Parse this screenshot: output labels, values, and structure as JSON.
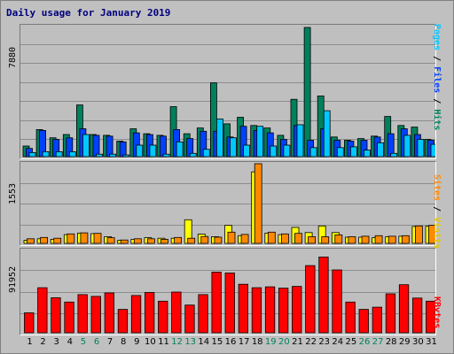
{
  "title": "Daily usage for January 2019",
  "colors": {
    "hits": "#00805c",
    "files": "#0040ff",
    "pages": "#00c8ff",
    "visits": "#ff8800",
    "sites": "#ffff00",
    "kbytes": "#ff0000",
    "weekend_label": "#00805c",
    "weekday_label": "#000000"
  },
  "legend": {
    "top": {
      "pages": "Pages",
      "sep1": " / ",
      "files": "Files",
      "sep2": " / ",
      "hits": "Hits"
    },
    "middle": {
      "sites": "Sites",
      "sep1": " / ",
      "visits": "Visits"
    },
    "bottom": {
      "kbytes": "KBytes"
    }
  },
  "chart_data": [
    {
      "type": "bar",
      "panel": "top",
      "ymax_label": "7880",
      "ylim": [
        0,
        7880
      ],
      "categories": [
        "1",
        "2",
        "3",
        "4",
        "5",
        "6",
        "7",
        "8",
        "9",
        "10",
        "11",
        "12",
        "13",
        "14",
        "15",
        "16",
        "17",
        "18",
        "19",
        "20",
        "21",
        "22",
        "23",
        "24",
        "25",
        "26",
        "27",
        "28",
        "29",
        "30",
        "31"
      ],
      "weekend": [
        5,
        6,
        12,
        13,
        19,
        20,
        26,
        27
      ],
      "series": [
        {
          "name": "Hits",
          "values": [
            650,
            1650,
            1150,
            1350,
            3150,
            1350,
            1300,
            950,
            1700,
            1400,
            1300,
            3050,
            1400,
            1750,
            4500,
            2000,
            2400,
            1900,
            1750,
            1300,
            3500,
            7880,
            3700,
            1200,
            1000,
            1100,
            1250,
            2450,
            1900,
            1800,
            1050
          ]
        },
        {
          "name": "Files",
          "values": [
            500,
            1600,
            1050,
            1150,
            1700,
            1300,
            1250,
            900,
            1450,
            1350,
            1250,
            1650,
            1100,
            1550,
            1550,
            1200,
            1850,
            1600,
            1450,
            1050,
            1900,
            1000,
            1700,
            1000,
            950,
            1000,
            1200,
            1400,
            1700,
            1350,
            1000
          ]
        },
        {
          "name": "Pages",
          "values": [
            250,
            300,
            300,
            300,
            1350,
            150,
            150,
            100,
            700,
            700,
            150,
            900,
            200,
            450,
            2300,
            1150,
            700,
            1850,
            650,
            700,
            1950,
            550,
            2800,
            550,
            600,
            400,
            850,
            200,
            1300,
            1050,
            750
          ]
        }
      ]
    },
    {
      "type": "bar",
      "panel": "middle",
      "ymax_label": "1553",
      "ylim": [
        0,
        1553
      ],
      "categories": [
        "1",
        "2",
        "3",
        "4",
        "5",
        "6",
        "7",
        "8",
        "9",
        "10",
        "11",
        "12",
        "13",
        "14",
        "15",
        "16",
        "17",
        "18",
        "19",
        "20",
        "21",
        "22",
        "23",
        "24",
        "25",
        "26",
        "27",
        "28",
        "29",
        "30",
        "31"
      ],
      "series": [
        {
          "name": "Visits",
          "values": [
            90,
            115,
            100,
            185,
            205,
            195,
            110,
            65,
            90,
            90,
            80,
            115,
            100,
            135,
            120,
            220,
            175,
            1553,
            220,
            185,
            195,
            130,
            130,
            165,
            130,
            140,
            150,
            140,
            150,
            340,
            350
          ]
        },
        {
          "name": "Sites",
          "values": [
            60,
            90,
            80,
            170,
            200,
            190,
            130,
            60,
            80,
            110,
            100,
            100,
            460,
            180,
            130,
            350,
            150,
            1395,
            200,
            170,
            310,
            210,
            340,
            210,
            120,
            120,
            110,
            130,
            140,
            330,
            335
          ]
        }
      ]
    },
    {
      "type": "bar",
      "panel": "bottom",
      "ymax_label": "91952",
      "ylim": [
        0,
        91952
      ],
      "categories": [
        "1",
        "2",
        "3",
        "4",
        "5",
        "6",
        "7",
        "8",
        "9",
        "10",
        "11",
        "12",
        "13",
        "14",
        "15",
        "16",
        "17",
        "18",
        "19",
        "20",
        "21",
        "22",
        "23",
        "24",
        "25",
        "26",
        "27",
        "28",
        "29",
        "30",
        "31"
      ],
      "series": [
        {
          "name": "KBytes",
          "values": [
            23000,
            52000,
            40500,
            35500,
            44000,
            42000,
            46000,
            27000,
            43000,
            46500,
            36500,
            47000,
            32000,
            44000,
            70000,
            69000,
            56000,
            52000,
            53000,
            51500,
            53500,
            77500,
            87500,
            72500,
            35500,
            27000,
            29500,
            45000,
            55500,
            40000,
            36500
          ]
        }
      ]
    }
  ]
}
